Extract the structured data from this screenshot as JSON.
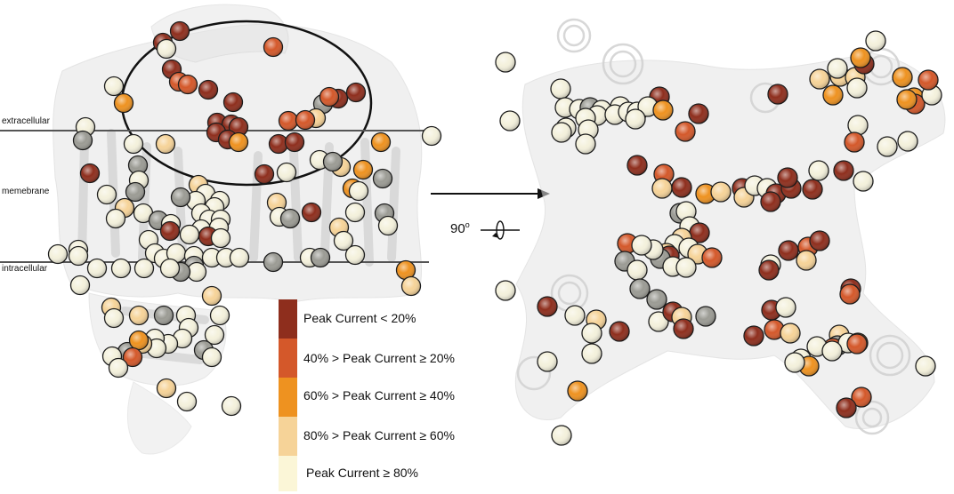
{
  "left_view": {
    "labels": {
      "extracellular": "extracellular",
      "membrane": "memebrane",
      "intracellular": "intracellular"
    }
  },
  "rotation": {
    "angle": "90",
    "degree": "o"
  },
  "legend": {
    "items": [
      {
        "label": "Peak Current < 20%",
        "color": "#8e2e1d"
      },
      {
        "label": "40% > Peak Current ≥ 20%",
        "color": "#d4582a"
      },
      {
        "label": "60% > Peak Current  ≥ 40%",
        "color": "#ee9220"
      },
      {
        "label": "80% > Peak Current  ≥ 60%",
        "color": "#f6d398"
      },
      {
        "label": "Peak Current ≥ 80%",
        "color": "#fbf6d7"
      }
    ]
  },
  "colors": {
    "structure": "#e2e2e2",
    "structure_dark": "#d2d2d2",
    "membrane_line": "#555555",
    "bin0": "#8e2e1d",
    "bin1": "#d4582a",
    "bin2": "#ee9220",
    "bin3": "#f6d398",
    "bin4": "#f4f1dc",
    "grey_sphere": "#9b9b94"
  }
}
